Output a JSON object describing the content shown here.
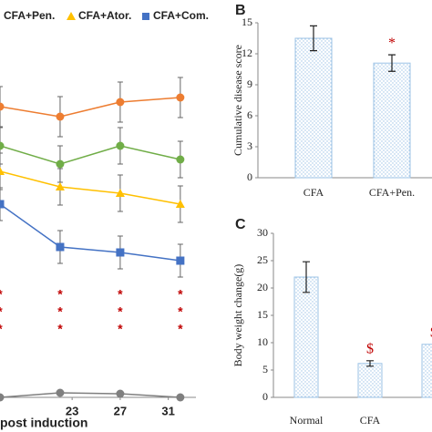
{
  "chart_data": [
    {
      "type": "line",
      "xlabel": "post induction",
      "xlim": [
        17,
        33.3
      ],
      "xticks": [
        23,
        27,
        31
      ],
      "x": [
        17,
        22,
        27,
        32
      ],
      "ylim": [
        0,
        440
      ],
      "series": [
        {
          "color": "#ed7d31",
          "marker": "circle",
          "values": [
            323,
            312,
            328,
            333
          ],
          "errors": [
            22,
            22,
            22,
            22
          ]
        },
        {
          "name": "CFA+Pen.",
          "color": "#70ad47",
          "marker": "circle",
          "values": [
            280,
            260,
            280,
            265
          ],
          "errors": [
            20,
            20,
            20,
            20
          ]
        },
        {
          "name": "CFA+Ator.",
          "color": "#ffc000",
          "marker": "triangle",
          "values": [
            252,
            235,
            228,
            216
          ],
          "errors": [
            20,
            20,
            20,
            20
          ]
        },
        {
          "name": "CFA+Com.",
          "color": "#4472c4",
          "marker": "square",
          "values": [
            216,
            169,
            163,
            154
          ],
          "errors": [
            18,
            18,
            18,
            18
          ]
        },
        {
          "color": "#7f7f7f",
          "marker": "circle",
          "values": [
            4,
            9,
            8,
            4
          ],
          "errors": [
            2,
            2,
            2,
            2
          ]
        }
      ],
      "significance": [
        [
          "*",
          "*",
          "*"
        ],
        [
          "*",
          "*",
          "*"
        ],
        [
          "*",
          "*",
          "*"
        ],
        [
          "*",
          "*",
          "*"
        ]
      ]
    },
    {
      "type": "bar",
      "panel_label": "B",
      "ylabel": "Cumulative disease score",
      "categories": [
        "CFA",
        "CFA+Pen."
      ],
      "values": [
        13.5,
        11.1
      ],
      "errors": [
        1.2,
        0.8
      ],
      "markers": [
        null,
        "*"
      ],
      "ylim": [
        0,
        15
      ],
      "yticks": [
        0,
        3,
        6,
        9,
        12,
        15
      ],
      "color": "#9dc3e6"
    },
    {
      "type": "bar",
      "panel_label": "C",
      "ylabel": "Body weight change(g)",
      "categories": [
        "Normal",
        "CFA",
        null
      ],
      "values": [
        22,
        6.2,
        9.7
      ],
      "errors": [
        2.8,
        0.5,
        null
      ],
      "markers": [
        null,
        "$",
        "$"
      ],
      "ylim": [
        0,
        30
      ],
      "yticks": [
        0,
        5,
        10,
        15,
        20,
        25,
        30
      ],
      "color": "#9dc3e6"
    }
  ]
}
